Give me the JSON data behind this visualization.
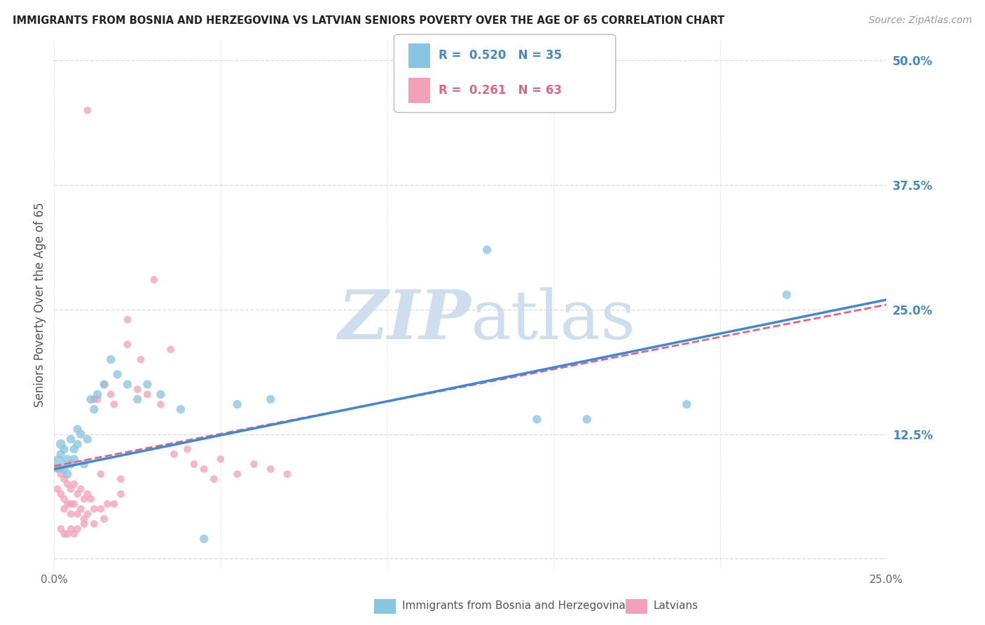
{
  "title": "IMMIGRANTS FROM BOSNIA AND HERZEGOVINA VS LATVIAN SENIORS POVERTY OVER THE AGE OF 65 CORRELATION CHART",
  "source": "Source: ZipAtlas.com",
  "ylabel": "Seniors Poverty Over the Age of 65",
  "x_min": 0.0,
  "x_max": 0.25,
  "y_min": -0.01,
  "y_max": 0.52,
  "x_ticks": [
    0.0,
    0.05,
    0.1,
    0.15,
    0.2,
    0.25
  ],
  "x_tick_labels": [
    "0.0%",
    "",
    "",
    "",
    "",
    "25.0%"
  ],
  "y_ticks": [
    0.0,
    0.125,
    0.25,
    0.375,
    0.5
  ],
  "y_tick_labels": [
    "",
    "12.5%",
    "25.0%",
    "37.5%",
    "50.0%"
  ],
  "background_color": "#ffffff",
  "grid_color": "#dddddd",
  "color_blue": "#89c4e1",
  "color_pink": "#f4a0b8",
  "line_blue": "#4488cc",
  "line_pink": "#dd6688",
  "legend_R1": "0.520",
  "legend_N1": "35",
  "legend_R2": "0.261",
  "legend_N2": "63",
  "watermark_color": "#cddfee",
  "blue_scatter_x": [
    0.001,
    0.002,
    0.002,
    0.003,
    0.003,
    0.004,
    0.004,
    0.005,
    0.005,
    0.006,
    0.006,
    0.007,
    0.007,
    0.008,
    0.009,
    0.01,
    0.011,
    0.012,
    0.013,
    0.015,
    0.017,
    0.019,
    0.022,
    0.025,
    0.028,
    0.032,
    0.038,
    0.045,
    0.055,
    0.065,
    0.13,
    0.145,
    0.16,
    0.19,
    0.22
  ],
  "blue_scatter_y": [
    0.095,
    0.105,
    0.115,
    0.09,
    0.11,
    0.1,
    0.085,
    0.095,
    0.12,
    0.1,
    0.11,
    0.13,
    0.115,
    0.125,
    0.095,
    0.12,
    0.16,
    0.15,
    0.165,
    0.175,
    0.2,
    0.185,
    0.175,
    0.16,
    0.175,
    0.165,
    0.15,
    0.02,
    0.155,
    0.16,
    0.31,
    0.14,
    0.14,
    0.155,
    0.265
  ],
  "blue_scatter_size": [
    300,
    80,
    100,
    80,
    80,
    80,
    80,
    80,
    80,
    80,
    80,
    80,
    80,
    80,
    80,
    80,
    80,
    80,
    80,
    80,
    80,
    80,
    80,
    80,
    80,
    80,
    80,
    80,
    80,
    80,
    80,
    80,
    80,
    80,
    80
  ],
  "pink_scatter_x": [
    0.001,
    0.001,
    0.002,
    0.002,
    0.003,
    0.003,
    0.003,
    0.004,
    0.004,
    0.005,
    0.005,
    0.005,
    0.006,
    0.006,
    0.007,
    0.007,
    0.008,
    0.008,
    0.009,
    0.009,
    0.01,
    0.01,
    0.011,
    0.012,
    0.012,
    0.013,
    0.014,
    0.015,
    0.016,
    0.017,
    0.018,
    0.02,
    0.022,
    0.025,
    0.028,
    0.032,
    0.036,
    0.04,
    0.045,
    0.05,
    0.055,
    0.06,
    0.065,
    0.07,
    0.03,
    0.035,
    0.042,
    0.048,
    0.022,
    0.026,
    0.018,
    0.015,
    0.012,
    0.009,
    0.007,
    0.005,
    0.003,
    0.002,
    0.004,
    0.006,
    0.01,
    0.014,
    0.02
  ],
  "pink_scatter_y": [
    0.09,
    0.07,
    0.085,
    0.065,
    0.08,
    0.06,
    0.05,
    0.075,
    0.055,
    0.07,
    0.055,
    0.045,
    0.075,
    0.055,
    0.065,
    0.045,
    0.07,
    0.05,
    0.06,
    0.04,
    0.065,
    0.045,
    0.06,
    0.16,
    0.05,
    0.16,
    0.05,
    0.175,
    0.055,
    0.165,
    0.055,
    0.065,
    0.215,
    0.17,
    0.165,
    0.155,
    0.105,
    0.11,
    0.09,
    0.1,
    0.085,
    0.095,
    0.09,
    0.085,
    0.28,
    0.21,
    0.095,
    0.08,
    0.24,
    0.2,
    0.155,
    0.04,
    0.035,
    0.035,
    0.03,
    0.03,
    0.025,
    0.03,
    0.025,
    0.025,
    0.45,
    0.085,
    0.08
  ],
  "pink_scatter_size": [
    60,
    60,
    60,
    60,
    60,
    60,
    60,
    60,
    60,
    60,
    60,
    60,
    60,
    60,
    60,
    60,
    60,
    60,
    60,
    60,
    60,
    60,
    60,
    60,
    60,
    60,
    60,
    60,
    60,
    60,
    60,
    60,
    60,
    60,
    60,
    60,
    60,
    60,
    60,
    60,
    60,
    60,
    60,
    60,
    60,
    60,
    60,
    60,
    60,
    60,
    60,
    60,
    60,
    60,
    60,
    60,
    60,
    60,
    60,
    60,
    60,
    60,
    60
  ],
  "blue_line_x": [
    0.0,
    0.25
  ],
  "blue_line_y": [
    0.09,
    0.26
  ],
  "pink_line_x": [
    0.0,
    0.25
  ],
  "pink_line_y": [
    0.093,
    0.255
  ]
}
